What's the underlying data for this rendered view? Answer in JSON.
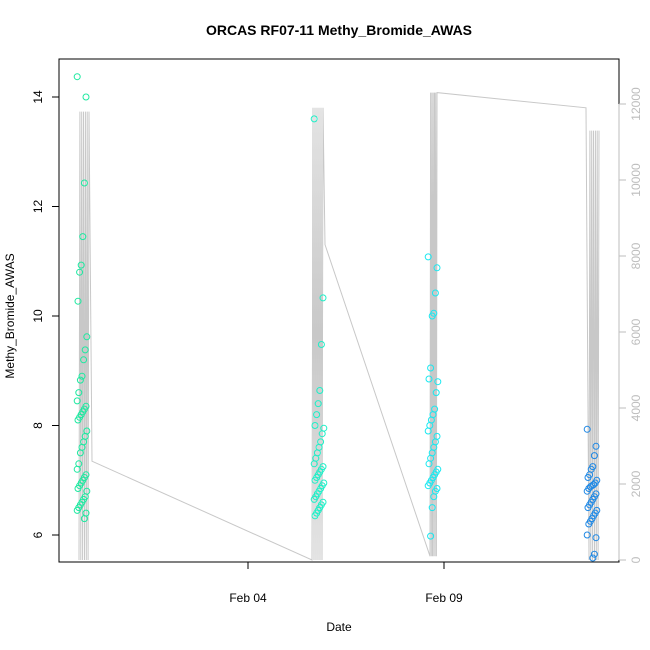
{
  "chart_data": {
    "type": "scatter",
    "title": "ORCAS RF07-11 Methy_Bromide_AWAS",
    "xlabel": "Date",
    "ylabel": "Methy_Bromide_AWAS",
    "x_ticks": [
      "Feb 04",
      "Feb 09"
    ],
    "y_ticks": [
      "6",
      "8",
      "10",
      "12",
      "14"
    ],
    "y2_ticks": [
      "0",
      "2000",
      "4000",
      "6000",
      "8000",
      "10000",
      "12000"
    ],
    "y2_color": "#bdbdbd",
    "grid": false,
    "legend": "none",
    "point_colors": [
      "#1de9a0",
      "#1ef0c8",
      "#1ae8f0",
      "#1e88e5"
    ],
    "altitude_line_color": "#c8c8c8",
    "flights": [
      {
        "values": [
          14.37,
          14.0,
          12.43,
          11.45,
          10.93,
          10.8,
          10.27,
          9.62,
          9.38,
          9.2,
          8.9,
          8.83,
          8.6,
          8.45,
          8.35,
          8.3,
          8.25,
          8.2,
          8.15,
          8.1,
          7.9,
          7.8,
          7.7,
          7.6,
          7.5,
          7.3,
          7.2,
          7.1,
          7.05,
          7.0,
          6.95,
          6.9,
          6.85,
          6.8,
          6.7,
          6.65,
          6.6,
          6.55,
          6.5,
          6.45,
          6.4,
          6.3
        ]
      },
      {
        "values": [
          13.6,
          10.33,
          9.48,
          8.64,
          8.4,
          8.2,
          8.0,
          7.95,
          7.85,
          7.7,
          7.6,
          7.5,
          7.4,
          7.3,
          7.25,
          7.2,
          7.15,
          7.1,
          7.05,
          7.0,
          6.95,
          6.9,
          6.85,
          6.8,
          6.75,
          6.7,
          6.65,
          6.6,
          6.55,
          6.5,
          6.45,
          6.4,
          6.35
        ]
      },
      {
        "values": [
          11.08,
          10.88,
          10.42,
          10.05,
          10.0,
          9.05,
          8.85,
          8.8,
          8.6,
          8.3,
          8.2,
          8.1,
          8.0,
          7.9,
          7.8,
          7.7,
          7.6,
          7.5,
          7.4,
          7.3,
          7.2,
          7.15,
          7.1,
          7.05,
          7.0,
          6.95,
          6.9,
          6.85,
          6.8,
          6.7,
          6.5,
          5.98
        ]
      },
      {
        "values": [
          7.93,
          7.62,
          7.45,
          7.25,
          7.2,
          7.1,
          7.05,
          7.0,
          6.95,
          6.92,
          6.9,
          6.88,
          6.85,
          6.8,
          6.75,
          6.7,
          6.65,
          6.6,
          6.55,
          6.5,
          6.45,
          6.4,
          6.35,
          6.3,
          6.25,
          6.2,
          6.0,
          5.95,
          5.65,
          5.58
        ]
      }
    ]
  }
}
